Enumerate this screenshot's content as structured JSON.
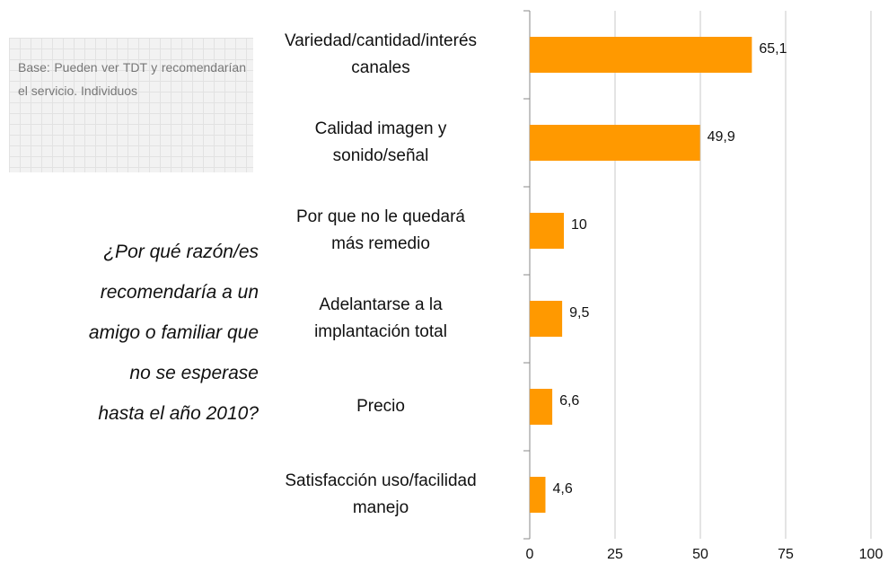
{
  "chart_data": {
    "type": "bar",
    "orientation": "horizontal",
    "annotations": [
      "Base: Pueden ver TDT y recomendarían el servicio. Individuos",
      "¿Por qué razón/es\nrecomendaría a un\namigo o familiar que\nno se esperase\nhasta el año 2010?"
    ],
    "categories": [
      "Variedad/cantidad/interés\ncanales",
      "Calidad imagen y\nsonido/señal",
      "Por que no le quedará\nmás remedio",
      "Adelantarse a la\nimplantación total",
      "Precio",
      "Satisfacción uso/facilidad\nmanejo"
    ],
    "values": [
      65.1,
      49.9,
      10,
      9.5,
      6.6,
      4.6
    ],
    "value_labels": [
      "65,1",
      "49,9",
      "10",
      "9,5",
      "6,6",
      "4,6"
    ],
    "color": "#ff9900",
    "xlim": [
      0,
      100
    ],
    "xticks": [
      0,
      25,
      50,
      75,
      100
    ],
    "grid": true
  }
}
